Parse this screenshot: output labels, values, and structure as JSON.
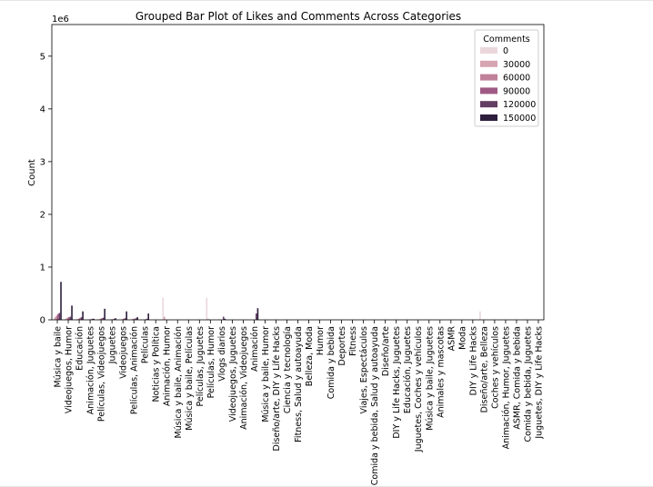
{
  "chart_data": {
    "type": "bar",
    "title": "Grouped Bar Plot of Likes and Comments Across Categories",
    "ylabel": "Count",
    "xlabel": "",
    "y_scale_label": "1e6",
    "ylim": [
      0,
      5.6
    ],
    "yticks": [
      0,
      1,
      2,
      3,
      4,
      5
    ],
    "grid": false,
    "legend_placement": "top-right",
    "legend": {
      "title": "Comments",
      "entries": [
        {
          "label": "0",
          "color": "#ead7dc"
        },
        {
          "label": "30000",
          "color": "#d7a4b1"
        },
        {
          "label": "60000",
          "color": "#c0809a"
        },
        {
          "label": "90000",
          "color": "#9e5a84"
        },
        {
          "label": "120000",
          "color": "#643e63"
        },
        {
          "label": "150000",
          "color": "#2d1e3d"
        }
      ]
    },
    "categories": [
      "Música y baile",
      "Videojuegos, Humor",
      "Educación",
      "Animación, Juguetes",
      "Películas, Videojuegos",
      "Juguetes",
      "Videojuegos",
      "Películas, Animación",
      "Películas",
      "Noticias y Política",
      "Animación, Humor",
      "Música y baile, Animación",
      "Música y baile, Películas",
      "Películas, Juguetes",
      "Películas, Humor",
      "Vlogs diarios",
      "Videojuegos, Juguetes",
      "Animación, Videojuegos",
      "Animación",
      "Música y baile, Humor",
      "Diseño/arte, DIY y Life Hacks",
      "Ciencia y tecnología",
      "Fitness, Salud y autoayuda",
      "Belleza, Moda",
      "Humor",
      "Comida y bebida",
      "Deportes",
      "Fitness",
      "Viajes, Espectáculos",
      "Comida y bebida, Salud y autoayuda",
      "Diseño/arte",
      "DIY y Life Hacks, Juguetes",
      "Educación, Juguetes",
      "Juguetes, Coches y vehículos",
      "Música y baile, Juguetes",
      "Animales y mascotas",
      "ASMR",
      "Moda",
      "DIY y Life Hacks",
      "Diseño/arte, Belleza",
      "Coches y vehículos",
      "Animación, Humor, Juguetes",
      "ASMR, Comida y bebida",
      "Comida y bebida, Juguetes",
      "Juguetes, DIY y Life Hacks"
    ],
    "series": [
      {
        "group": 0,
        "color": "#ead7dc",
        "values": [
          0.02,
          0.01,
          0.0,
          0.0,
          0.0,
          0.0,
          0.0,
          0.0,
          0.0,
          0.0,
          0.42,
          0.0,
          0.0,
          0.0,
          0.42,
          0.0,
          0.0,
          0.0,
          0.0,
          0.0,
          0.0,
          0.0,
          0.0,
          0.0,
          0.0,
          0.0,
          0.0,
          0.0,
          0.0,
          0.0,
          0.0,
          0.0,
          0.0,
          0.0,
          0.0,
          0.0,
          0.0,
          0.0,
          0.0,
          0.16,
          0.0,
          0.0,
          0.0,
          0.0,
          0.0
        ]
      },
      {
        "group": 1,
        "color": "#d7a4b1",
        "values": [
          0.05,
          0.02,
          0.01,
          0.0,
          0.01,
          0.0,
          0.0,
          0.01,
          0.0,
          0.0,
          0.06,
          0.0,
          0.0,
          0.0,
          0.02,
          0.01,
          0.0,
          0.0,
          0.0,
          0.0,
          0.0,
          0.0,
          0.0,
          0.0,
          0.0,
          0.0,
          0.0,
          0.0,
          0.0,
          0.0,
          0.0,
          0.0,
          0.0,
          0.0,
          0.0,
          0.0,
          0.0,
          0.0,
          0.0,
          0.0,
          0.0,
          0.0,
          0.0,
          0.0,
          0.0
        ]
      },
      {
        "group": 2,
        "color": "#c0809a",
        "values": [
          0.08,
          0.04,
          0.02,
          0.01,
          0.02,
          0.01,
          0.01,
          0.02,
          0.0,
          0.0,
          0.0,
          0.0,
          0.0,
          0.0,
          0.0,
          0.0,
          0.0,
          0.0,
          0.0,
          0.0,
          0.0,
          0.0,
          0.0,
          0.0,
          0.0,
          0.0,
          0.0,
          0.0,
          0.0,
          0.0,
          0.0,
          0.0,
          0.0,
          0.0,
          0.0,
          0.0,
          0.0,
          0.0,
          0.0,
          0.0,
          0.0,
          0.0,
          0.0,
          0.0,
          0.0
        ]
      },
      {
        "group": 3,
        "color": "#9e5a84",
        "values": [
          0.11,
          0.05,
          0.03,
          0.01,
          0.03,
          0.01,
          0.02,
          0.02,
          0.01,
          0.0,
          0.0,
          0.0,
          0.0,
          0.0,
          0.0,
          0.0,
          0.0,
          0.0,
          0.0,
          0.0,
          0.0,
          0.0,
          0.0,
          0.0,
          0.0,
          0.0,
          0.0,
          0.0,
          0.0,
          0.0,
          0.0,
          0.0,
          0.0,
          0.0,
          0.0,
          0.0,
          0.0,
          0.0,
          0.0,
          0.0,
          0.0,
          0.0,
          0.0,
          0.0,
          0.0
        ]
      },
      {
        "group": 4,
        "color": "#643e63",
        "values": [
          0.13,
          0.06,
          0.05,
          0.02,
          0.04,
          0.02,
          0.03,
          0.03,
          0.02,
          0.0,
          0.0,
          0.0,
          0.0,
          0.0,
          0.0,
          0.06,
          0.0,
          0.0,
          0.12,
          0.0,
          0.0,
          0.0,
          0.0,
          0.0,
          0.0,
          0.0,
          0.0,
          0.0,
          0.0,
          0.0,
          0.0,
          0.0,
          0.0,
          0.0,
          0.0,
          0.0,
          0.0,
          0.0,
          0.0,
          0.0,
          0.0,
          0.0,
          0.0,
          0.0,
          0.0
        ]
      },
      {
        "group": 5,
        "color": "#2d1e3d",
        "values": [
          0.72,
          0.27,
          0.16,
          0.02,
          0.21,
          0.03,
          0.16,
          0.05,
          0.12,
          0.0,
          0.0,
          0.0,
          0.0,
          0.0,
          0.0,
          0.02,
          0.0,
          0.0,
          0.22,
          0.0,
          0.0,
          0.0,
          0.0,
          0.0,
          0.0,
          0.0,
          0.0,
          0.0,
          0.0,
          0.0,
          0.0,
          0.0,
          0.0,
          0.0,
          0.0,
          0.0,
          0.0,
          0.0,
          0.0,
          0.0,
          0.0,
          0.0,
          0.0,
          0.0,
          0.0
        ]
      }
    ]
  }
}
